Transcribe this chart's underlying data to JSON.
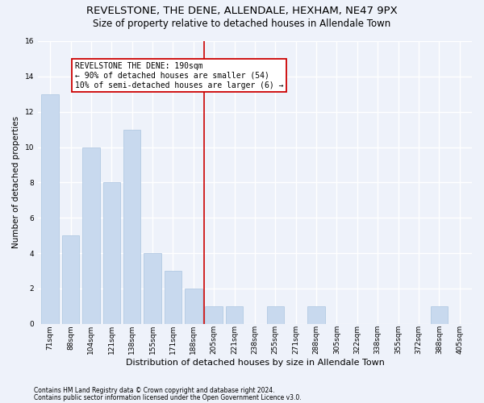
{
  "title": "REVELSTONE, THE DENE, ALLENDALE, HEXHAM, NE47 9PX",
  "subtitle": "Size of property relative to detached houses in Allendale Town",
  "xlabel": "Distribution of detached houses by size in Allendale Town",
  "ylabel": "Number of detached properties",
  "footnote1": "Contains HM Land Registry data © Crown copyright and database right 2024.",
  "footnote2": "Contains public sector information licensed under the Open Government Licence v3.0.",
  "categories": [
    "71sqm",
    "88sqm",
    "104sqm",
    "121sqm",
    "138sqm",
    "155sqm",
    "171sqm",
    "188sqm",
    "205sqm",
    "221sqm",
    "238sqm",
    "255sqm",
    "271sqm",
    "288sqm",
    "305sqm",
    "322sqm",
    "338sqm",
    "355sqm",
    "372sqm",
    "388sqm",
    "405sqm"
  ],
  "values": [
    13,
    5,
    10,
    8,
    11,
    4,
    3,
    2,
    1,
    1,
    0,
    1,
    0,
    1,
    0,
    0,
    0,
    0,
    0,
    1,
    0
  ],
  "bar_color": "#c8d9ee",
  "bar_edge_color": "#aac4e0",
  "red_line_x": 7.5,
  "annotation_title": "REVELSTONE THE DENE: 190sqm",
  "annotation_line1": "← 90% of detached houses are smaller (54)",
  "annotation_line2": "10% of semi-detached houses are larger (6) →",
  "ylim": [
    0,
    16
  ],
  "yticks": [
    0,
    2,
    4,
    6,
    8,
    10,
    12,
    14,
    16
  ],
  "background_color": "#eef2fa",
  "grid_color": "#ffffff",
  "title_fontsize": 9.5,
  "subtitle_fontsize": 8.5,
  "xlabel_fontsize": 8,
  "ylabel_fontsize": 7.5,
  "annotation_box_color": "#ffffff",
  "annotation_box_edge": "#cc0000",
  "red_line_color": "#cc0000",
  "footnote_fontsize": 5.5,
  "tick_fontsize": 6.5,
  "annotation_fontsize": 7
}
